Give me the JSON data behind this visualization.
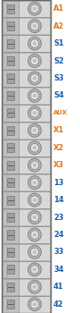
{
  "terminals": [
    "A1",
    "A2",
    "S1",
    "S2",
    "S3",
    "S4",
    "AUX",
    "X1",
    "X2",
    "X3",
    "13",
    "14",
    "23",
    "24",
    "33",
    "34",
    "41",
    "42"
  ],
  "label_colors": {
    "A1": "#e07818",
    "A2": "#e07818",
    "S1": "#1a5fa8",
    "S2": "#1a5fa8",
    "S3": "#1a5fa8",
    "S4": "#1a5fa8",
    "AUX": "#e07818",
    "X1": "#e07818",
    "X2": "#e07818",
    "X3": "#e07818",
    "13": "#1a5fa8",
    "14": "#1a5fa8",
    "23": "#1a5fa8",
    "24": "#1a5fa8",
    "33": "#1a5fa8",
    "34": "#1a5fa8",
    "41": "#1a5fa8",
    "42": "#1a5fa8"
  },
  "bg_color": "#f0f0f0",
  "figsize": [
    0.9,
    3.5
  ],
  "dpi": 100
}
